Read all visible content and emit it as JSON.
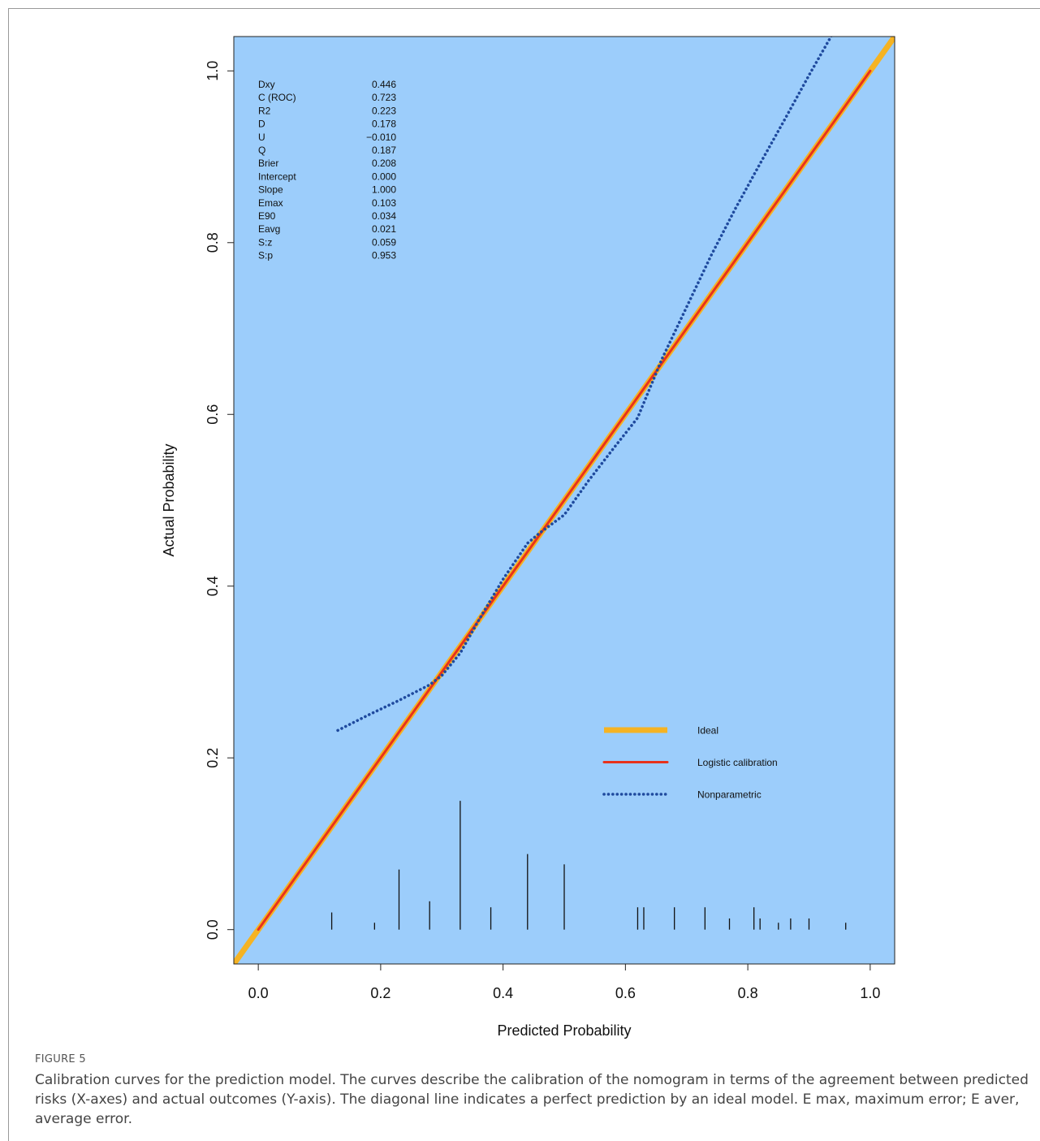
{
  "figure": {
    "label": "FIGURE 5",
    "caption": "Calibration curves for the prediction model. The curves describe the calibration of the nomogram in terms of the agreement between predicted risks (X-axes) and actual outcomes (Y-axis). The diagonal line indicates a perfect prediction by an ideal model. E max, maximum error; E aver, average error."
  },
  "colors": {
    "panel_bg": "#9ccdfb",
    "ideal": "#f5b323",
    "logistic": "#e8321b",
    "nonparametric": "#1f4a9e",
    "rug": "#111111"
  },
  "chart_data": {
    "type": "line",
    "xlabel": "Predicted Probability",
    "ylabel": "Actual Probability",
    "xlim": [
      -0.04,
      1.04
    ],
    "ylim": [
      -0.04,
      1.04
    ],
    "xticks": [
      0.0,
      0.2,
      0.4,
      0.6,
      0.8,
      1.0
    ],
    "xtick_labels": [
      "0.0",
      "0.2",
      "0.4",
      "0.6",
      "0.8",
      "1.0"
    ],
    "yticks": [
      0.0,
      0.2,
      0.4,
      0.6,
      0.8,
      1.0
    ],
    "ytick_labels": [
      "0.0",
      "0.2",
      "0.4",
      "0.6",
      "0.8",
      "1.0"
    ],
    "grid": false,
    "legend_position": "bottom-right",
    "stats": [
      {
        "name": "Dxy",
        "value": "0.446"
      },
      {
        "name": "C (ROC)",
        "value": "0.723"
      },
      {
        "name": "R2",
        "value": "0.223"
      },
      {
        "name": "D",
        "value": "0.178"
      },
      {
        "name": "U",
        "value": "−0.010"
      },
      {
        "name": "Q",
        "value": "0.187"
      },
      {
        "name": "Brier",
        "value": "0.208"
      },
      {
        "name": "Intercept",
        "value": "0.000"
      },
      {
        "name": "Slope",
        "value": "1.000"
      },
      {
        "name": "Emax",
        "value": "0.103"
      },
      {
        "name": "E90",
        "value": "0.034"
      },
      {
        "name": "Eavg",
        "value": "0.021"
      },
      {
        "name": "S:z",
        "value": "0.059"
      },
      {
        "name": "S:p",
        "value": "0.953"
      }
    ],
    "series": [
      {
        "name": "Ideal",
        "style": "thick-solid",
        "color_key": "ideal",
        "x": [
          -0.04,
          1.04
        ],
        "y": [
          -0.04,
          1.04
        ]
      },
      {
        "name": "Logistic calibration",
        "style": "solid",
        "color_key": "logistic",
        "x": [
          0.0,
          1.0
        ],
        "y": [
          0.0,
          1.0
        ]
      },
      {
        "name": "Nonparametric",
        "style": "dotted",
        "color_key": "nonparametric",
        "x": [
          0.13,
          0.18,
          0.23,
          0.28,
          0.3,
          0.33,
          0.36,
          0.4,
          0.44,
          0.46,
          0.5,
          0.54,
          0.58,
          0.62,
          0.66,
          0.7,
          0.74,
          0.78,
          0.82,
          0.86,
          0.9,
          0.94,
          0.96
        ],
        "y": [
          0.232,
          0.25,
          0.267,
          0.285,
          0.296,
          0.322,
          0.36,
          0.408,
          0.45,
          0.462,
          0.483,
          0.523,
          0.56,
          0.596,
          0.665,
          0.725,
          0.785,
          0.84,
          0.892,
          0.943,
          0.995,
          1.045,
          1.07
        ]
      }
    ],
    "rug": [
      {
        "x": 0.12,
        "h": 0.02
      },
      {
        "x": 0.19,
        "h": 0.008
      },
      {
        "x": 0.23,
        "h": 0.07
      },
      {
        "x": 0.28,
        "h": 0.033
      },
      {
        "x": 0.33,
        "h": 0.15
      },
      {
        "x": 0.38,
        "h": 0.026
      },
      {
        "x": 0.44,
        "h": 0.088
      },
      {
        "x": 0.5,
        "h": 0.076
      },
      {
        "x": 0.62,
        "h": 0.026
      },
      {
        "x": 0.63,
        "h": 0.026
      },
      {
        "x": 0.68,
        "h": 0.026
      },
      {
        "x": 0.73,
        "h": 0.026
      },
      {
        "x": 0.77,
        "h": 0.013
      },
      {
        "x": 0.81,
        "h": 0.026
      },
      {
        "x": 0.82,
        "h": 0.013
      },
      {
        "x": 0.85,
        "h": 0.008
      },
      {
        "x": 0.87,
        "h": 0.013
      },
      {
        "x": 0.9,
        "h": 0.013
      },
      {
        "x": 0.96,
        "h": 0.008
      }
    ]
  }
}
